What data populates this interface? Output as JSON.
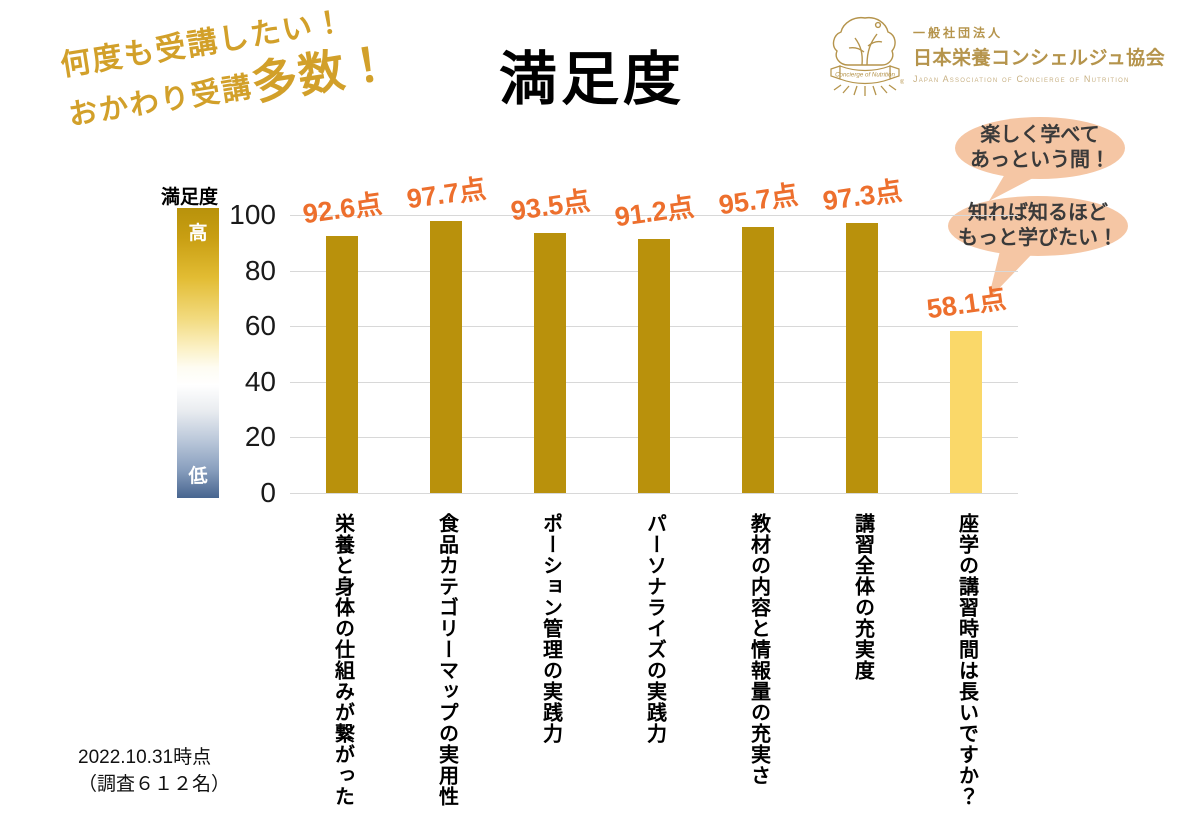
{
  "title": "満足度",
  "tagline": {
    "line1": "何度も受講したい！",
    "line2_prefix": "おかわり受講",
    "line2_emphasis": "多数！"
  },
  "logo": {
    "org_type": "一般社団法人",
    "org_name": "日本栄養コンシェルジュ協会",
    "org_name_en": "Japan Association of Concierge of Nutrition",
    "emblem_ribbon": "Concierge of Nutrition",
    "registered_mark": "®"
  },
  "bubbles": [
    {
      "line1": "楽しく学べて",
      "line2": "あっという間！"
    },
    {
      "line1": "知れば知るほど",
      "line2": "もっと学びたい！"
    }
  ],
  "legend": {
    "title": "満足度",
    "high": "高",
    "low": "低"
  },
  "footnote": {
    "line1": "2022.10.31時点",
    "line2": "（調査６１２名）"
  },
  "chart_data": {
    "type": "bar",
    "title": "満足度",
    "categories": [
      "栄養と身体の仕組みが繋がった",
      "食品カテゴリーマップの実用性",
      "ポーション管理の実践力",
      "パーソナライズの実践力",
      "教材の内容と情報量の充実さ",
      "講習全体の充実度",
      "座学の講習時間は長いですか？"
    ],
    "values": [
      92.6,
      97.7,
      93.5,
      91.2,
      95.7,
      97.3,
      58.1
    ],
    "value_labels": [
      "92.6点",
      "97.7点",
      "93.5点",
      "91.2点",
      "95.7点",
      "97.3点",
      "58.1点"
    ],
    "yticks": [
      0,
      20,
      40,
      60,
      80,
      100
    ],
    "ylim": [
      0,
      100
    ],
    "xlabel": "",
    "ylabel": "満足度",
    "grid": true,
    "legend_position": "left-gradient-high-low",
    "bar_color": "#B9910C",
    "highlight_bar_index": 6,
    "highlight_bar_color": "#FAD869",
    "value_label_color": "#ED6F2D",
    "gridline_color": "#D8D8D8"
  },
  "colors": {
    "tagline_gold": "#D2A02A",
    "logo_gold": "#B5944C",
    "bubble_fill": "#F5C6A4",
    "gradient_top": "#B8920B",
    "gradient_bottom": "#47658F"
  }
}
